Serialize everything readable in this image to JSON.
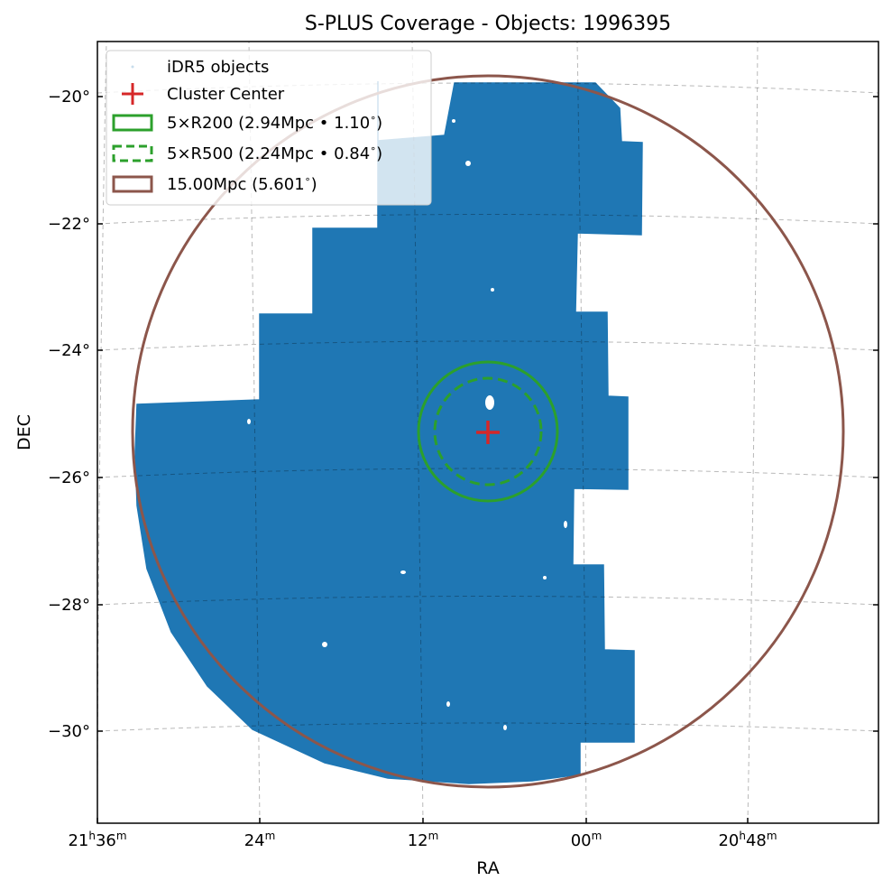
{
  "chart_data": {
    "type": "scatter",
    "title": "S-PLUS Coverage - Objects: 1996395",
    "xlabel": "RA",
    "ylabel": "DEC",
    "projection": "celestial (RA/DEC world coordinates)",
    "grid": "on, dashed gray",
    "legend_placement": "top-left",
    "x_ticks": [
      {
        "label": "21h36m",
        "base": "21",
        "sup1": "h",
        "mid": "36",
        "sup2": "m",
        "ra_hours": 21.6
      },
      {
        "label": "24m",
        "base": "",
        "sup1": "",
        "mid": "24",
        "sup2": "m",
        "ra_hours": 21.4
      },
      {
        "label": "12m",
        "base": "",
        "sup1": "",
        "mid": "12",
        "sup2": "m",
        "ra_hours": 21.2
      },
      {
        "label": "00m",
        "base": "",
        "sup1": "",
        "mid": "00",
        "sup2": "m",
        "ra_hours": 21.0
      },
      {
        "label": "20h48m",
        "base": "20",
        "sup1": "h",
        "mid": "48",
        "sup2": "m",
        "ra_hours": 20.8
      }
    ],
    "y_ticks": [
      {
        "label": "−20°",
        "dec": -20
      },
      {
        "label": "−22°",
        "dec": -22
      },
      {
        "label": "−24°",
        "dec": -24
      },
      {
        "label": "−26°",
        "dec": -26
      },
      {
        "label": "−28°",
        "dec": -28
      },
      {
        "label": "−30°",
        "dec": -30
      }
    ],
    "center": {
      "ra_hours": 21.1,
      "dec": -25.3
    },
    "coverage": {
      "label": "iDR5 objects",
      "count": 1996395,
      "color": "#1f77b4",
      "footprint_radec": [
        [
          21.33,
          -26.4
        ],
        [
          21.53,
          -25.02
        ],
        [
          21.38,
          -25.0
        ],
        [
          21.38,
          -23.35
        ],
        [
          21.28,
          -23.35
        ],
        [
          21.28,
          -21.9
        ],
        [
          21.19,
          -21.9
        ],
        [
          21.19,
          -20.7
        ],
        [
          21.11,
          -20.7
        ],
        [
          21.11,
          -19.9
        ],
        [
          21.0,
          -19.9
        ],
        [
          21.0,
          -20.5
        ],
        [
          20.96,
          -20.5
        ],
        [
          20.96,
          -22.1
        ],
        [
          21.02,
          -22.1
        ],
        [
          21.02,
          -23.3
        ],
        [
          20.98,
          -23.3
        ],
        [
          20.98,
          -25.0
        ],
        [
          20.96,
          -25.0
        ],
        [
          20.96,
          -26.0
        ],
        [
          21.02,
          -26.0
        ],
        [
          21.02,
          -27.5
        ],
        [
          20.98,
          -27.5
        ],
        [
          20.98,
          -28.8
        ],
        [
          20.96,
          -28.8
        ],
        [
          20.96,
          -30.2
        ],
        [
          21.02,
          -30.2
        ],
        [
          21.02,
          -30.6
        ],
        [
          21.08,
          -30.8
        ],
        [
          21.12,
          -30.6
        ],
        [
          21.12,
          -30.6
        ]
      ]
    },
    "circles": [
      {
        "label": "5×R200 (2.94Mpc • 1.10°)",
        "label_main": "5×R200 (2.94Mpc • 1.10",
        "radius_deg": 1.1,
        "style": "solid",
        "color": "#2ca02c"
      },
      {
        "label": "5×R500 (2.24Mpc • 0.84°)",
        "label_main": "5×R500 (2.24Mpc • 0.84",
        "radius_deg": 0.84,
        "style": "dashed",
        "color": "#2ca02c"
      },
      {
        "label": "15.00Mpc (5.601°)",
        "label_main": "15.00Mpc (5.601",
        "radius_deg": 5.601,
        "style": "solid",
        "color": "#8c564b"
      }
    ],
    "marker": {
      "label": "Cluster Center",
      "symbol": "+",
      "color": "#d62728"
    }
  }
}
